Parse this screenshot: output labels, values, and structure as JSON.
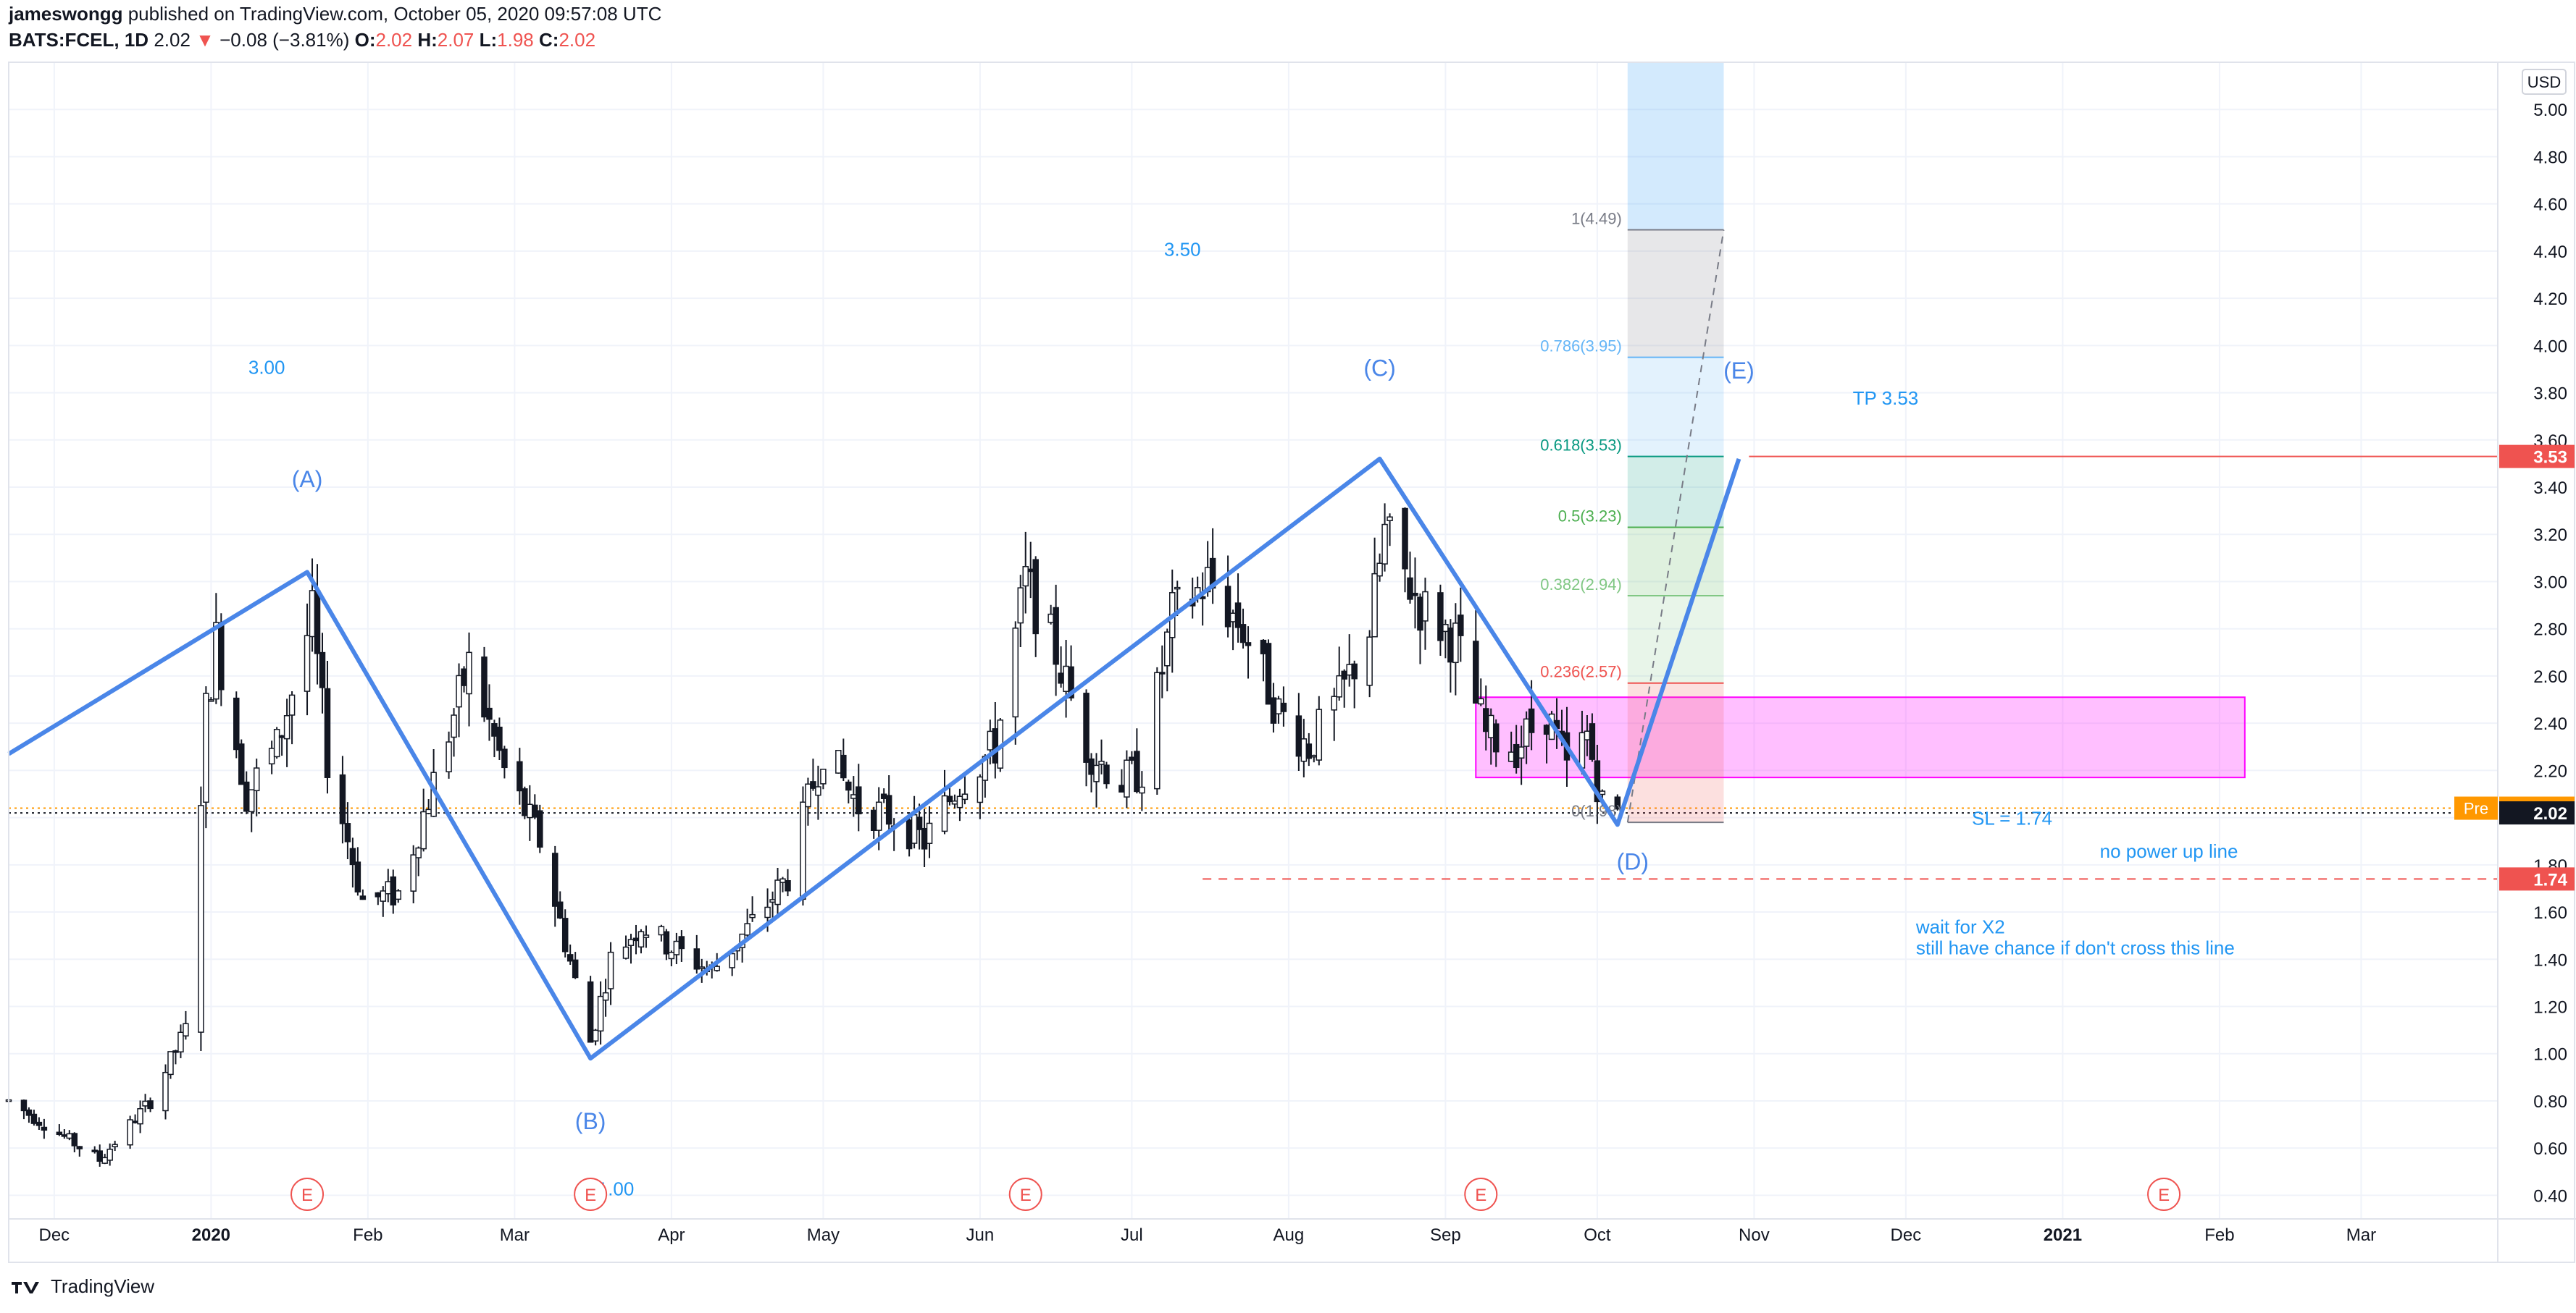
{
  "header": {
    "user": "jameswongg",
    "published": "published on TradingView.com, October 05, 2020 09:57:08 UTC",
    "symbol": "BATS:FCEL, 1D",
    "last": "2.02",
    "change": "−0.08 (−3.81%)",
    "o_label": "O:",
    "o": "2.02",
    "h_label": "H:",
    "h": "2.07",
    "l_label": "L:",
    "l": "1.98",
    "c_label": "C:",
    "c": "2.02"
  },
  "footer": {
    "brand": "TradingView"
  },
  "colors": {
    "wave": "#4a86e8",
    "red": "#ef5350",
    "text_blue": "#2196f3",
    "pink_box": "#ff00ff",
    "pre_badge": "#ff9800"
  },
  "chart_data": {
    "type": "candlestick",
    "symbol": "BATS:FCEL",
    "interval": "1D",
    "currency": "USD",
    "ylim": [
      0.3,
      5.2
    ],
    "xlim": [
      "2019-11-22",
      "2021-03-28"
    ],
    "y_ticks": [
      "5.00",
      "4.80",
      "4.60",
      "4.40",
      "4.20",
      "4.00",
      "3.80",
      "3.60",
      "3.40",
      "3.20",
      "3.00",
      "2.80",
      "2.60",
      "2.40",
      "2.20",
      "2.00",
      "1.80",
      "1.60",
      "1.40",
      "1.20",
      "1.00",
      "0.80",
      "0.60",
      "0.40"
    ],
    "x_ticks": [
      {
        "date": "2019-12-01",
        "label": "Dec",
        "bold": false
      },
      {
        "date": "2020-01-01",
        "label": "2020",
        "bold": true
      },
      {
        "date": "2020-02-01",
        "label": "Feb",
        "bold": false
      },
      {
        "date": "2020-03-01",
        "label": "Mar",
        "bold": false
      },
      {
        "date": "2020-04-01",
        "label": "Apr",
        "bold": false
      },
      {
        "date": "2020-05-01",
        "label": "May",
        "bold": false
      },
      {
        "date": "2020-06-01",
        "label": "Jun",
        "bold": false
      },
      {
        "date": "2020-07-01",
        "label": "Jul",
        "bold": false
      },
      {
        "date": "2020-08-01",
        "label": "Aug",
        "bold": false
      },
      {
        "date": "2020-09-01",
        "label": "Sep",
        "bold": false
      },
      {
        "date": "2020-10-01",
        "label": "Oct",
        "bold": false
      },
      {
        "date": "2020-11-01",
        "label": "Nov",
        "bold": false
      },
      {
        "date": "2020-12-01",
        "label": "Dec",
        "bold": false
      },
      {
        "date": "2021-01-01",
        "label": "2021",
        "bold": true
      },
      {
        "date": "2021-02-01",
        "label": "Feb",
        "bold": false
      },
      {
        "date": "2021-03-01",
        "label": "Mar",
        "bold": false
      }
    ],
    "price_badges": [
      {
        "label": "Pre",
        "value": "2.04",
        "price": 2.04,
        "color": "#ff9800"
      },
      {
        "value": "2.02",
        "price": 2.02,
        "color": "#131722"
      },
      {
        "value": "3.53",
        "price": 3.53,
        "color": "#ef5350"
      },
      {
        "value": "1.74",
        "price": 1.74,
        "color": "#ef5350"
      }
    ],
    "anchors": [
      {
        "date": "2019-11-22",
        "price": 0.8
      },
      {
        "date": "2019-12-10",
        "price": 0.55
      },
      {
        "date": "2019-12-20",
        "price": 0.8
      },
      {
        "date": "2019-12-27",
        "price": 1.1
      },
      {
        "date": "2019-12-31",
        "price": 2.45
      },
      {
        "date": "2020-01-02",
        "price": 2.75
      },
      {
        "date": "2020-01-08",
        "price": 2.1
      },
      {
        "date": "2020-01-14",
        "price": 2.3
      },
      {
        "date": "2020-01-21",
        "price": 2.85
      },
      {
        "date": "2020-01-24",
        "price": 2.25
      },
      {
        "date": "2020-01-31",
        "price": 1.65
      },
      {
        "date": "2020-02-07",
        "price": 1.68
      },
      {
        "date": "2020-02-14",
        "price": 2.15
      },
      {
        "date": "2020-02-21",
        "price": 2.65
      },
      {
        "date": "2020-02-28",
        "price": 2.2
      },
      {
        "date": "2020-03-06",
        "price": 1.9
      },
      {
        "date": "2020-03-16",
        "price": 1.05
      },
      {
        "date": "2020-03-20",
        "price": 1.4
      },
      {
        "date": "2020-03-26",
        "price": 1.55
      },
      {
        "date": "2020-04-01",
        "price": 1.45
      },
      {
        "date": "2020-04-09",
        "price": 1.35
      },
      {
        "date": "2020-04-17",
        "price": 1.55
      },
      {
        "date": "2020-04-24",
        "price": 1.75
      },
      {
        "date": "2020-05-01",
        "price": 2.3
      },
      {
        "date": "2020-05-08",
        "price": 2.05
      },
      {
        "date": "2020-05-15",
        "price": 2.0
      },
      {
        "date": "2020-05-21",
        "price": 1.9
      },
      {
        "date": "2020-05-28",
        "price": 2.15
      },
      {
        "date": "2020-06-04",
        "price": 2.3
      },
      {
        "date": "2020-06-10",
        "price": 3.0
      },
      {
        "date": "2020-06-16",
        "price": 2.7
      },
      {
        "date": "2020-06-22",
        "price": 2.3
      },
      {
        "date": "2020-06-29",
        "price": 2.15
      },
      {
        "date": "2020-07-03",
        "price": 2.2
      },
      {
        "date": "2020-07-09",
        "price": 2.85
      },
      {
        "date": "2020-07-16",
        "price": 3.0
      },
      {
        "date": "2020-07-23",
        "price": 2.8
      },
      {
        "date": "2020-07-30",
        "price": 2.45
      },
      {
        "date": "2020-08-05",
        "price": 2.3
      },
      {
        "date": "2020-08-11",
        "price": 2.5
      },
      {
        "date": "2020-08-17",
        "price": 2.8
      },
      {
        "date": "2020-08-20",
        "price": 3.2
      },
      {
        "date": "2020-08-27",
        "price": 2.9
      },
      {
        "date": "2020-09-03",
        "price": 2.75
      },
      {
        "date": "2020-09-09",
        "price": 2.35
      },
      {
        "date": "2020-09-15",
        "price": 2.3
      },
      {
        "date": "2020-09-21",
        "price": 2.45
      },
      {
        "date": "2020-09-25",
        "price": 2.2
      },
      {
        "date": "2020-09-29",
        "price": 2.35
      },
      {
        "date": "2020-10-02",
        "price": 2.06
      },
      {
        "date": "2020-10-05",
        "price": 2.02
      }
    ],
    "wave_lines": [
      {
        "points": [
          {
            "date": "2019-11-22",
            "price": 2.27
          },
          {
            "date": "2020-01-20",
            "price": 3.04
          },
          {
            "date": "2020-03-16",
            "price": 0.98
          },
          {
            "date": "2020-08-19",
            "price": 3.52
          },
          {
            "date": "2020-10-05",
            "price": 1.97
          },
          {
            "date": "2020-10-29",
            "price": 3.52
          }
        ],
        "color": "#4a86e8"
      }
    ],
    "wave_labels": [
      {
        "text": "(A)",
        "date": "2020-01-20",
        "price": 3.4,
        "color": "#4a86e8"
      },
      {
        "text": "(B)",
        "date": "2020-03-16",
        "price": 0.68,
        "color": "#4a86e8"
      },
      {
        "text": "(C)",
        "date": "2020-08-19",
        "price": 3.87,
        "color": "#4a86e8"
      },
      {
        "text": "(D)",
        "date": "2020-10-08",
        "price": 1.78,
        "color": "#4a86e8"
      },
      {
        "text": "(E)",
        "date": "2020-10-29",
        "price": 3.86,
        "color": "#4a86e8"
      }
    ],
    "annotations": [
      {
        "text": "3.00",
        "date": "2020-01-12",
        "price": 3.88,
        "color": "#2196f3",
        "anchor": "middle"
      },
      {
        "text": "3.50",
        "date": "2020-07-11",
        "price": 4.38,
        "color": "#2196f3",
        "anchor": "middle"
      },
      {
        "text": "1.00",
        "date": "2020-03-21",
        "price": 0.4,
        "color": "#2196f3",
        "anchor": "middle"
      },
      {
        "text": "TP 3.53",
        "date": "2020-11-27",
        "price": 3.75,
        "color": "#2196f3",
        "anchor": "middle"
      },
      {
        "text": "SL = 1.74",
        "date": "2020-12-22",
        "price": 1.97,
        "color": "#2196f3",
        "anchor": "middle"
      },
      {
        "text": "no power up line",
        "date": "2021-01-22",
        "price": 1.83,
        "color": "#2196f3",
        "anchor": "middle"
      },
      {
        "text": "wait for X2",
        "date": "2020-12-03",
        "price": 1.51,
        "color": "#2196f3",
        "anchor": "start"
      },
      {
        "text": "still have chance if don't cross this line",
        "date": "2020-12-03",
        "price": 1.42,
        "color": "#2196f3",
        "anchor": "start"
      }
    ],
    "horizontal_lines": [
      {
        "price": 2.04,
        "from": "2019-11-22",
        "to": "2021-03-28",
        "style": "dotted",
        "color": "#ff9800"
      },
      {
        "price": 2.02,
        "from": "2019-11-22",
        "to": "2021-03-28",
        "style": "dotted",
        "color": "#131722"
      },
      {
        "price": 3.53,
        "from": "2020-10-31",
        "to": "2021-03-28",
        "style": "solid",
        "color": "#ef5350"
      },
      {
        "price": 1.74,
        "from": "2020-07-15",
        "to": "2021-03-28",
        "style": "dashed",
        "color": "#ef5350"
      }
    ],
    "zone_box": {
      "from": "2020-09-07",
      "to": "2021-02-06",
      "top": 2.51,
      "bottom": 2.17,
      "color": "#ff00ff"
    },
    "projection_column": {
      "from": "2020-10-07",
      "to": "2020-10-26",
      "top": 5.2,
      "bottom": 4.49,
      "color": "#2196f3"
    },
    "fib_levels": [
      {
        "label": "1(4.49)",
        "ratio": "1",
        "price": 4.49,
        "color": "#787b86"
      },
      {
        "label": "0.786(3.95)",
        "ratio": "0.786",
        "price": 3.95,
        "color": "#64b5f6"
      },
      {
        "label": "0.618(3.53)",
        "ratio": "0.618",
        "price": 3.53,
        "color": "#089981"
      },
      {
        "label": "0.5(3.23)",
        "ratio": "0.5",
        "price": 3.23,
        "color": "#4caf50"
      },
      {
        "label": "0.382(2.94)",
        "ratio": "0.382",
        "price": 2.94,
        "color": "#81c784"
      },
      {
        "label": "0.236(2.57)",
        "ratio": "0.236",
        "price": 2.57,
        "color": "#ef5350"
      },
      {
        "label": "0(1.98)",
        "ratio": "0",
        "price": 1.98,
        "color": "#787b86"
      }
    ],
    "fib_range": {
      "from": "2020-10-07",
      "to": "2020-10-26"
    },
    "fib_trend": {
      "from": {
        "date": "2020-10-07",
        "price": 1.98
      },
      "to": {
        "date": "2020-10-26",
        "price": 4.49
      }
    },
    "earnings_markers": [
      {
        "date": "2020-01-20",
        "label": "E"
      },
      {
        "date": "2020-03-16",
        "label": "E"
      },
      {
        "date": "2020-06-10",
        "label": "E"
      },
      {
        "date": "2020-09-08",
        "label": "E"
      },
      {
        "date": "2021-01-21",
        "label": "E"
      }
    ]
  }
}
